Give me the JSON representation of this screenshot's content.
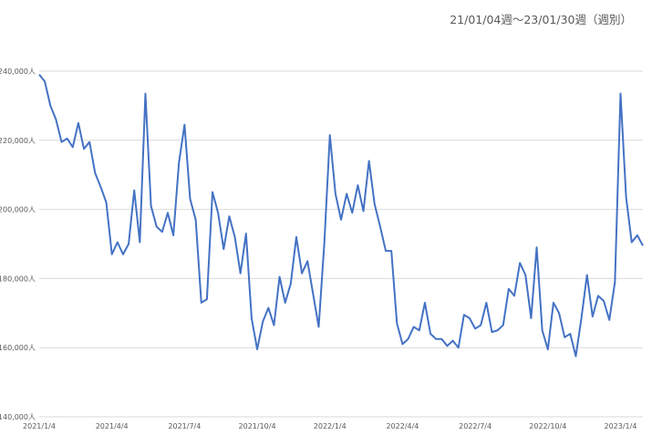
{
  "chart_data": {
    "type": "line",
    "subtitle": "21/01/04週〜23/01/30週（週別）",
    "ylim": [
      140000,
      240000
    ],
    "y_ticks": [
      "140,000人",
      "160,000人",
      "180,000人",
      "200,000人",
      "220,000人",
      "240,000人"
    ],
    "y_tick_values": [
      140000,
      160000,
      180000,
      200000,
      220000,
      240000
    ],
    "x_ticks": [
      "2021/1/4",
      "2021/4/4",
      "2021/7/4",
      "2021/10/4",
      "2022/1/4",
      "2022/4/4",
      "2022/7/4",
      "2022/10/4",
      "2023/1/4"
    ],
    "x_tick_weeks": [
      0,
      13,
      26,
      39,
      52,
      65,
      78,
      91,
      104
    ],
    "grid": true,
    "color": "#4472C4",
    "series": [
      {
        "values": [
          239000,
          237000,
          230000,
          226000,
          219500,
          220500,
          218000,
          225000,
          217500,
          219500,
          210500,
          206500,
          202000,
          187000,
          190500,
          187000,
          190000,
          205500,
          190500,
          233500,
          201000,
          195000,
          193500,
          199000,
          192500,
          213500,
          224500,
          203000,
          197000,
          173000,
          174000,
          205000,
          199000,
          188500,
          198000,
          192000,
          181500,
          193000,
          168500,
          159500,
          167500,
          171500,
          166500,
          180500,
          173000,
          178500,
          192000,
          181500,
          185000,
          175500,
          166000,
          190000,
          221500,
          204500,
          197000,
          204500,
          199000,
          207000,
          199500,
          214000,
          201500,
          195000,
          188000,
          188000,
          167000,
          161000,
          162500,
          166000,
          165000,
          173000,
          164000,
          162500,
          162500,
          160500,
          162000,
          160000,
          169500,
          168500,
          165500,
          166500,
          173000,
          164500,
          165000,
          166500,
          177000,
          175000,
          184500,
          181000,
          168500,
          189000,
          165000,
          159500,
          173000,
          170000,
          163000,
          164000,
          157500,
          168500,
          181000,
          169000,
          175000,
          173500,
          168000,
          179000,
          233500,
          203500,
          190500,
          192500,
          189500
        ]
      }
    ]
  }
}
